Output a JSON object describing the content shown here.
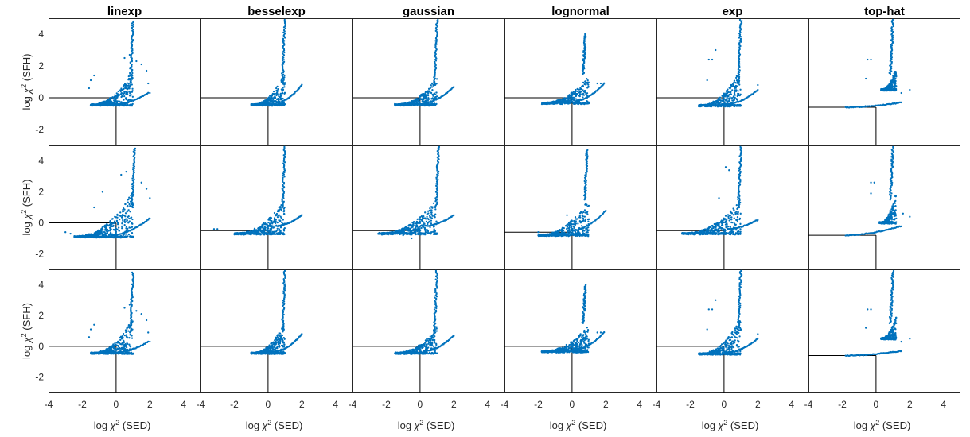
{
  "chart_data": {
    "type": "scatter",
    "layout": {
      "rows": 3,
      "cols": 6
    },
    "column_titles": [
      "linexp",
      "besselexp",
      "gaussian",
      "lognormal",
      "exp",
      "top-hat"
    ],
    "xlabel": {
      "prefix": "log ",
      "symbol": "χ",
      "sup": "2",
      "suffix": " (SED)"
    },
    "ylabel": {
      "prefix": "log ",
      "symbol": "χ",
      "sup": "2",
      "suffix": " (SFH)"
    },
    "xlim": [
      -4,
      5
    ],
    "ylim": [
      -3,
      5
    ],
    "xticks": [
      -4,
      -2,
      0,
      2,
      4
    ],
    "yticks": [
      -2,
      0,
      2,
      4
    ],
    "reference_lines": {
      "x": 0,
      "y_by_row": [
        0,
        0,
        0
      ]
    },
    "marker_color": "#0072BD",
    "grid": false,
    "legend": "none",
    "panels": [
      {
        "row": 0,
        "col": 0,
        "name": "linexp",
        "ref_y": 0,
        "fan": {
          "x0": -1.5,
          "x1": 1.0,
          "ybase": -0.45,
          "ytop": 1.8,
          "n": 320
        },
        "spike": {
          "x": 1.0,
          "y0": 1.0,
          "y1": 4.8,
          "n": 60
        },
        "tail": {
          "x0": 0.0,
          "x1": 1.9,
          "y0": -0.4,
          "y1": 0.3,
          "n": 40
        },
        "extra": [
          {
            "x": -1.6,
            "y": 0.6
          },
          {
            "x": -1.5,
            "y": 1.1
          },
          {
            "x": -1.3,
            "y": 1.4
          },
          {
            "x": 0.5,
            "y": 2.5
          },
          {
            "x": 0.8,
            "y": 2.7
          },
          {
            "x": 1.2,
            "y": 2.3
          },
          {
            "x": 1.5,
            "y": 2.1
          },
          {
            "x": 1.8,
            "y": 1.7
          },
          {
            "x": 1.9,
            "y": 0.9
          },
          {
            "x": 2.0,
            "y": 0.3
          }
        ]
      },
      {
        "row": 0,
        "col": 1,
        "name": "besselexp",
        "ref_y": 0,
        "fan": {
          "x0": -1.0,
          "x1": 1.0,
          "ybase": -0.45,
          "ytop": 1.5,
          "n": 320
        },
        "spike": {
          "x": 1.0,
          "y0": 1.0,
          "y1": 4.9,
          "n": 60
        },
        "tail": {
          "x0": 0.5,
          "x1": 2.0,
          "y0": -0.3,
          "y1": 0.8,
          "n": 40
        },
        "extra": []
      },
      {
        "row": 0,
        "col": 2,
        "name": "gaussian",
        "ref_y": 0,
        "fan": {
          "x0": -1.5,
          "x1": 1.0,
          "ybase": -0.45,
          "ytop": 1.3,
          "n": 320
        },
        "spike": {
          "x": 1.0,
          "y0": 0.8,
          "y1": 4.9,
          "n": 60
        },
        "tail": {
          "x0": 0.3,
          "x1": 2.0,
          "y0": -0.3,
          "y1": 0.7,
          "n": 40
        },
        "extra": []
      },
      {
        "row": 0,
        "col": 3,
        "name": "lognormal",
        "ref_y": 0,
        "fan": {
          "x0": -1.8,
          "x1": 1.0,
          "ybase": -0.35,
          "ytop": 1.4,
          "n": 320
        },
        "spike": {
          "x": 0.8,
          "y0": 1.5,
          "y1": 4.0,
          "n": 60
        },
        "tail": {
          "x0": 0.2,
          "x1": 1.9,
          "y0": -0.2,
          "y1": 0.9,
          "n": 40
        },
        "extra": [
          {
            "x": 1.5,
            "y": 0.9
          },
          {
            "x": 1.7,
            "y": 0.9
          }
        ]
      },
      {
        "row": 0,
        "col": 4,
        "name": "exp",
        "ref_y": 0,
        "fan": {
          "x0": -1.5,
          "x1": 1.0,
          "ybase": -0.5,
          "ytop": 1.8,
          "n": 320
        },
        "spike": {
          "x": 1.0,
          "y0": 1.0,
          "y1": 4.9,
          "n": 60
        },
        "tail": {
          "x0": 0.2,
          "x1": 2.0,
          "y0": -0.4,
          "y1": 0.5,
          "n": 40
        },
        "extra": [
          {
            "x": -0.9,
            "y": 2.4
          },
          {
            "x": -0.7,
            "y": 2.4
          },
          {
            "x": -1.0,
            "y": 1.1
          },
          {
            "x": -0.5,
            "y": 3.0
          },
          {
            "x": 2.0,
            "y": 0.8
          }
        ]
      },
      {
        "row": 0,
        "col": 5,
        "name": "top-hat",
        "ref_y": -0.6,
        "fan": {
          "x0": 0.3,
          "x1": 1.2,
          "ybase": 0.5,
          "ytop": 2.0,
          "n": 200
        },
        "spike": {
          "x": 1.0,
          "y0": 1.5,
          "y1": 4.9,
          "n": 60
        },
        "tail": {
          "x0": -1.8,
          "x1": 1.5,
          "y0": -0.6,
          "y1": -0.3,
          "n": 60
        },
        "extra": [
          {
            "x": -0.5,
            "y": 2.4
          },
          {
            "x": -0.3,
            "y": 2.4
          },
          {
            "x": -0.6,
            "y": 1.2
          },
          {
            "x": 2.0,
            "y": 0.5
          },
          {
            "x": 1.5,
            "y": 0.3
          }
        ]
      },
      {
        "row": 1,
        "col": 0,
        "name": "linexp",
        "ref_y": 0,
        "fan": {
          "x0": -2.5,
          "x1": 1.0,
          "ybase": -0.9,
          "ytop": 2.0,
          "n": 360
        },
        "spike": {
          "x": 1.1,
          "y0": 1.0,
          "y1": 4.8,
          "n": 60
        },
        "tail": {
          "x0": -0.3,
          "x1": 2.0,
          "y0": -0.8,
          "y1": 0.3,
          "n": 50
        },
        "extra": [
          {
            "x": -3.0,
            "y": -0.6
          },
          {
            "x": -2.7,
            "y": -0.7
          },
          {
            "x": -1.3,
            "y": 1.0
          },
          {
            "x": -0.8,
            "y": 2.0
          },
          {
            "x": 0.3,
            "y": 3.1
          },
          {
            "x": 0.6,
            "y": 3.3
          },
          {
            "x": 1.5,
            "y": 2.6
          },
          {
            "x": 1.8,
            "y": 2.2
          },
          {
            "x": 2.0,
            "y": 1.6
          }
        ]
      },
      {
        "row": 1,
        "col": 1,
        "name": "besselexp",
        "ref_y": -0.5,
        "fan": {
          "x0": -2.0,
          "x1": 1.0,
          "ybase": -0.7,
          "ytop": 1.5,
          "n": 340
        },
        "spike": {
          "x": 1.0,
          "y0": 1.0,
          "y1": 4.9,
          "n": 60
        },
        "tail": {
          "x0": 0.5,
          "x1": 2.0,
          "y0": -0.2,
          "y1": 0.5,
          "n": 40
        },
        "extra": [
          {
            "x": -3.2,
            "y": -0.4
          },
          {
            "x": -3.0,
            "y": -0.4
          }
        ]
      },
      {
        "row": 1,
        "col": 2,
        "name": "gaussian",
        "ref_y": -0.5,
        "fan": {
          "x0": -2.5,
          "x1": 1.0,
          "ybase": -0.7,
          "ytop": 1.5,
          "n": 340
        },
        "spike": {
          "x": 1.1,
          "y0": 1.0,
          "y1": 4.9,
          "n": 60
        },
        "tail": {
          "x0": 0.3,
          "x1": 2.0,
          "y0": -0.2,
          "y1": 0.5,
          "n": 40
        },
        "extra": [
          {
            "x": -1.0,
            "y": -0.8
          },
          {
            "x": -0.5,
            "y": -1.0
          }
        ]
      },
      {
        "row": 1,
        "col": 3,
        "name": "lognormal",
        "ref_y": -0.6,
        "fan": {
          "x0": -2.0,
          "x1": 1.0,
          "ybase": -0.8,
          "ytop": 1.5,
          "n": 340
        },
        "spike": {
          "x": 0.9,
          "y0": 1.5,
          "y1": 4.7,
          "n": 60
        },
        "tail": {
          "x0": 0.0,
          "x1": 2.0,
          "y0": -0.5,
          "y1": 0.8,
          "n": 40
        },
        "extra": [
          {
            "x": -2.0,
            "y": -0.6
          },
          {
            "x": -0.3,
            "y": 0.5
          }
        ]
      },
      {
        "row": 1,
        "col": 4,
        "name": "exp",
        "ref_y": -0.5,
        "fan": {
          "x0": -2.5,
          "x1": 1.0,
          "ybase": -0.7,
          "ytop": 1.5,
          "n": 340
        },
        "spike": {
          "x": 1.0,
          "y0": 1.0,
          "y1": 4.9,
          "n": 60
        },
        "tail": {
          "x0": 0.2,
          "x1": 2.0,
          "y0": -0.4,
          "y1": 0.2,
          "n": 40
        },
        "extra": [
          {
            "x": 0.1,
            "y": 3.6
          },
          {
            "x": 0.3,
            "y": 3.4
          },
          {
            "x": -0.3,
            "y": 1.6
          }
        ]
      },
      {
        "row": 1,
        "col": 5,
        "name": "top-hat",
        "ref_y": -0.8,
        "fan": {
          "x0": 0.2,
          "x1": 1.2,
          "ybase": 0.0,
          "ytop": 2.0,
          "n": 200
        },
        "spike": {
          "x": 1.0,
          "y0": 1.5,
          "y1": 4.9,
          "n": 60
        },
        "tail": {
          "x0": -1.8,
          "x1": 1.5,
          "y0": -0.8,
          "y1": -0.2,
          "n": 60
        },
        "extra": [
          {
            "x": -0.3,
            "y": 2.6
          },
          {
            "x": -0.1,
            "y": 2.6
          },
          {
            "x": -0.3,
            "y": 1.9
          },
          {
            "x": 2.0,
            "y": 0.4
          },
          {
            "x": 1.6,
            "y": 0.6
          }
        ]
      },
      {
        "row": 2,
        "col": 0,
        "name": "linexp",
        "ref_y": 0,
        "fan": {
          "x0": -1.5,
          "x1": 1.0,
          "ybase": -0.45,
          "ytop": 1.8,
          "n": 320
        },
        "spike": {
          "x": 1.0,
          "y0": 1.0,
          "y1": 4.8,
          "n": 60
        },
        "tail": {
          "x0": 0.0,
          "x1": 1.9,
          "y0": -0.4,
          "y1": 0.3,
          "n": 40
        },
        "extra": [
          {
            "x": -1.6,
            "y": 0.6
          },
          {
            "x": -1.5,
            "y": 1.1
          },
          {
            "x": -1.3,
            "y": 1.4
          },
          {
            "x": 0.5,
            "y": 2.5
          },
          {
            "x": 0.8,
            "y": 2.7
          },
          {
            "x": 1.2,
            "y": 2.3
          },
          {
            "x": 1.5,
            "y": 2.1
          },
          {
            "x": 1.8,
            "y": 1.7
          },
          {
            "x": 1.9,
            "y": 0.9
          },
          {
            "x": 2.0,
            "y": 0.3
          }
        ]
      },
      {
        "row": 2,
        "col": 1,
        "name": "besselexp",
        "ref_y": 0,
        "fan": {
          "x0": -1.0,
          "x1": 1.0,
          "ybase": -0.45,
          "ytop": 1.5,
          "n": 320
        },
        "spike": {
          "x": 1.0,
          "y0": 1.0,
          "y1": 4.9,
          "n": 60
        },
        "tail": {
          "x0": 0.5,
          "x1": 2.0,
          "y0": -0.3,
          "y1": 0.8,
          "n": 40
        },
        "extra": []
      },
      {
        "row": 2,
        "col": 2,
        "name": "gaussian",
        "ref_y": 0,
        "fan": {
          "x0": -1.5,
          "x1": 1.0,
          "ybase": -0.45,
          "ytop": 1.3,
          "n": 320
        },
        "spike": {
          "x": 1.0,
          "y0": 0.8,
          "y1": 4.9,
          "n": 60
        },
        "tail": {
          "x0": 0.3,
          "x1": 2.0,
          "y0": -0.3,
          "y1": 0.7,
          "n": 40
        },
        "extra": []
      },
      {
        "row": 2,
        "col": 3,
        "name": "lognormal",
        "ref_y": 0,
        "fan": {
          "x0": -1.8,
          "x1": 1.0,
          "ybase": -0.35,
          "ytop": 1.4,
          "n": 320
        },
        "spike": {
          "x": 0.8,
          "y0": 1.5,
          "y1": 4.0,
          "n": 60
        },
        "tail": {
          "x0": 0.2,
          "x1": 1.9,
          "y0": -0.2,
          "y1": 0.9,
          "n": 40
        },
        "extra": [
          {
            "x": 1.5,
            "y": 0.9
          },
          {
            "x": 1.7,
            "y": 0.9
          }
        ]
      },
      {
        "row": 2,
        "col": 4,
        "name": "exp",
        "ref_y": 0,
        "fan": {
          "x0": -1.5,
          "x1": 1.0,
          "ybase": -0.5,
          "ytop": 1.8,
          "n": 320
        },
        "spike": {
          "x": 1.0,
          "y0": 1.0,
          "y1": 4.9,
          "n": 60
        },
        "tail": {
          "x0": 0.2,
          "x1": 2.0,
          "y0": -0.4,
          "y1": 0.5,
          "n": 40
        },
        "extra": [
          {
            "x": -0.9,
            "y": 2.4
          },
          {
            "x": -0.7,
            "y": 2.4
          },
          {
            "x": -1.0,
            "y": 1.1
          },
          {
            "x": -0.5,
            "y": 3.0
          },
          {
            "x": 2.0,
            "y": 0.8
          }
        ]
      },
      {
        "row": 2,
        "col": 5,
        "name": "top-hat",
        "ref_y": -0.6,
        "fan": {
          "x0": 0.3,
          "x1": 1.2,
          "ybase": 0.5,
          "ytop": 2.0,
          "n": 200
        },
        "spike": {
          "x": 1.0,
          "y0": 1.5,
          "y1": 4.9,
          "n": 60
        },
        "tail": {
          "x0": -1.8,
          "x1": 1.5,
          "y0": -0.6,
          "y1": -0.3,
          "n": 60
        },
        "extra": [
          {
            "x": -0.5,
            "y": 2.4
          },
          {
            "x": -0.3,
            "y": 2.4
          },
          {
            "x": -0.6,
            "y": 1.2
          },
          {
            "x": 2.0,
            "y": 0.5
          },
          {
            "x": 1.5,
            "y": 0.3
          }
        ]
      }
    ]
  }
}
